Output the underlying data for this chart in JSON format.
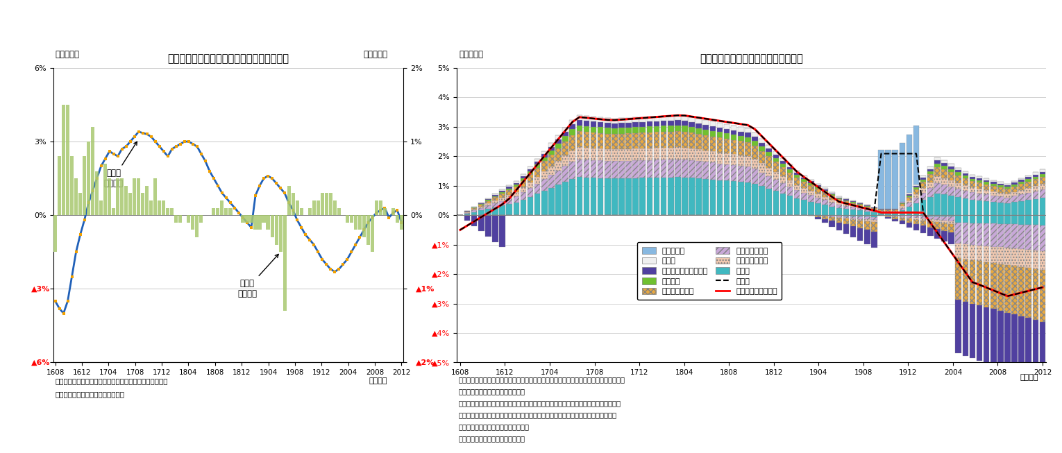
{
  "left_title": "国内企業物価指数（前年比・前月比）の推移",
  "right_title": "国内企業物価指数の前年比寄与度分解",
  "left_ylabel": "（前年比）",
  "left_ylabel2": "（前月比）",
  "left_note1": "（注）消費税を除くベース。前月比は夏季電力料金調整後",
  "left_note2": "（資料）日本銀行「企業物価指数」",
  "left_monthly_note": "（月次）",
  "right_ylabel": "（前年比）",
  "right_monthly_note": "（月次）",
  "right_note1": "（注）機械類：はん用機器、生産用機器、業務用機器、電子部品・デバイス、電気機器、",
  "right_note2": "　　　　情報通信機器、輸送用機器",
  "right_note3": "　　鉄鋼・建材関連：鉄鋼、金属製品、窯業・土石製品、木材・木製品、スクラップ類",
  "right_note4": "　　素材（その他）：化学製品、プラスチック製品、繊維製品、パルプ・紙・同製品",
  "right_note5": "　　その他：その他工業製品、鉱産物",
  "right_note6": "（資料）日本銀行「企業物価指数」",
  "xtick_labels": [
    "1608",
    "1612",
    "1704",
    "1708",
    "1712",
    "1804",
    "1808",
    "1812",
    "1904",
    "1908",
    "1912",
    "2004",
    "2008",
    "2012"
  ],
  "left_yoy": [
    -3.5,
    -3.8,
    -4.0,
    -3.5,
    -2.5,
    -1.5,
    -0.8,
    -0.2,
    0.5,
    1.0,
    1.5,
    2.0,
    2.3,
    2.6,
    2.5,
    2.4,
    2.7,
    2.8,
    3.0,
    3.2,
    3.4,
    3.35,
    3.3,
    3.2,
    3.0,
    2.8,
    2.6,
    2.4,
    2.7,
    2.8,
    2.9,
    3.0,
    3.0,
    2.9,
    2.8,
    2.5,
    2.2,
    1.8,
    1.5,
    1.2,
    0.9,
    0.7,
    0.5,
    0.3,
    0.1,
    -0.1,
    -0.3,
    -0.5,
    0.8,
    1.2,
    1.5,
    1.6,
    1.5,
    1.3,
    1.1,
    0.9,
    0.5,
    0.2,
    -0.2,
    -0.5,
    -0.8,
    -1.0,
    -1.2,
    -1.5,
    -1.8,
    -2.0,
    -2.2,
    -2.3,
    -2.2,
    -2.0,
    -1.8,
    -1.5,
    -1.2,
    -0.9,
    -0.6,
    -0.3,
    -0.1,
    0.1,
    0.2,
    0.3,
    -0.1,
    0.1,
    0.2,
    -0.3
  ],
  "left_mom": [
    -0.5,
    0.8,
    1.5,
    1.5,
    0.8,
    0.5,
    0.3,
    0.8,
    1.0,
    1.2,
    0.6,
    0.2,
    0.7,
    0.5,
    0.1,
    0.5,
    0.5,
    0.4,
    0.3,
    0.5,
    0.5,
    0.3,
    0.4,
    0.2,
    0.5,
    0.2,
    0.2,
    0.1,
    0.1,
    -0.1,
    -0.1,
    0.0,
    -0.1,
    -0.2,
    -0.3,
    -0.1,
    0.0,
    0.0,
    0.1,
    0.1,
    0.2,
    0.1,
    0.1,
    0.0,
    0.0,
    -0.1,
    -0.1,
    -0.1,
    -0.2,
    -0.2,
    -0.1,
    -0.2,
    -0.3,
    -0.4,
    -0.5,
    -1.3,
    0.4,
    0.3,
    0.2,
    0.1,
    0.0,
    0.1,
    0.2,
    0.2,
    0.3,
    0.3,
    0.3,
    0.2,
    0.1,
    0.0,
    -0.1,
    -0.1,
    -0.2,
    -0.2,
    -0.3,
    -0.4,
    -0.5,
    0.2,
    0.2,
    0.1,
    0.0,
    0.1,
    -0.1,
    -0.2
  ],
  "background_color": "#ffffff"
}
